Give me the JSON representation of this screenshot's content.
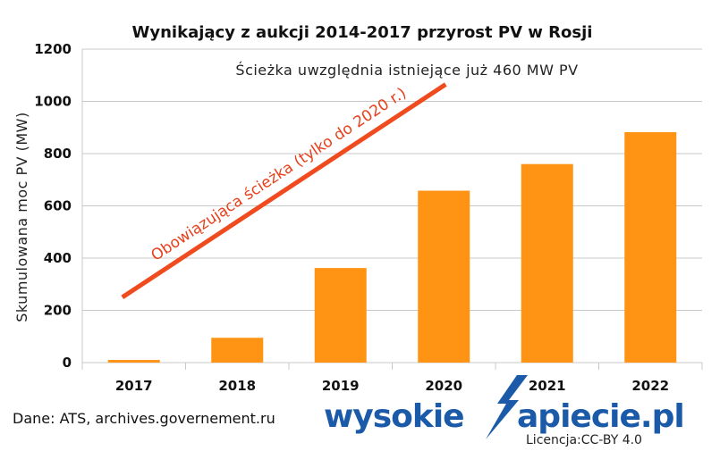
{
  "chart_data": {
    "type": "bar",
    "title": "Wynikający z aukcji 2014-2017 przyrost PV w Rosji",
    "ylabel": "Skumulowana moc PV (MW)",
    "xlabel": "",
    "categories": [
      "2017",
      "2018",
      "2019",
      "2020",
      "2021",
      "2022"
    ],
    "values": [
      10,
      95,
      362,
      658,
      760,
      882
    ],
    "ylim": [
      0,
      1200
    ],
    "yticks": [
      0,
      200,
      400,
      600,
      800,
      1000,
      1200
    ],
    "grid": true,
    "bar_color": "#ff9314",
    "path_line": {
      "label": "Obowiązująca ścieżka (tylko do 2020 r.)",
      "color": "#f04a1f",
      "start": {
        "x": "2017",
        "y": 250
      },
      "end": {
        "x": "2020",
        "y": 1065
      }
    },
    "annotation": "Ścieżka uwzględnia istniejące już 460 MW PV"
  },
  "footer": {
    "source": "Dane: ATS, archives.governement.ru",
    "brand_left": "wysokie",
    "brand_right": "apiecie.pl",
    "license": "Licencja:CC-BY 4.0",
    "brand_color": "#1a5aa8"
  }
}
